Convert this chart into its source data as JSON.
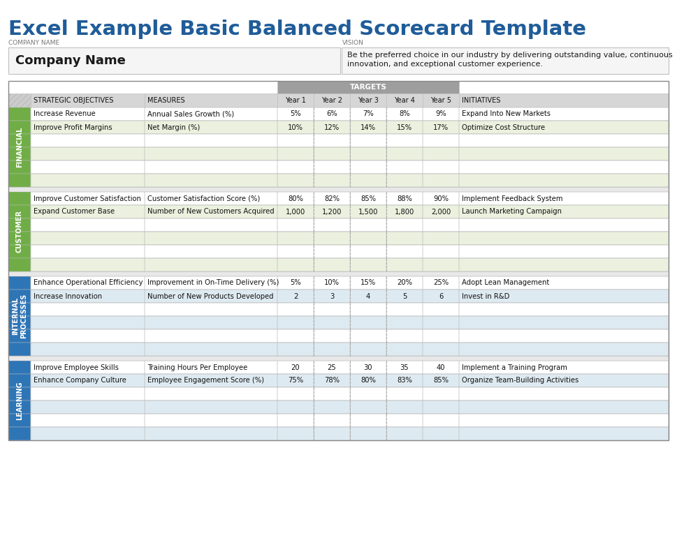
{
  "title": "Excel Example Basic Balanced Scorecard Template",
  "title_color": "#1F5C99",
  "company_label": "COMPANY NAME",
  "vision_label": "VISION",
  "company_name": "Company Name",
  "vision_text": "Be the preferred choice in our industry by delivering outstanding value, continuous\ninnovation, and exceptional customer experience.",
  "targets_label": "TARGETS",
  "col_headers": [
    "STRATEGIC OBJECTIVES",
    "MEASURES",
    "Year 1",
    "Year 2",
    "Year 3",
    "Year 4",
    "Year 5",
    "INITIATIVES"
  ],
  "perspectives": [
    {
      "name": "FINANCIAL",
      "side_color": "#70AD47",
      "odd_color": "#FFFFFF",
      "even_color": "#EBF1DE",
      "rows": [
        [
          "Increase Revenue",
          "Annual Sales Growth (%)",
          "5%",
          "6%",
          "7%",
          "8%",
          "9%",
          "Expand Into New Markets"
        ],
        [
          "Improve Profit Margins",
          "Net Margin (%)",
          "10%",
          "12%",
          "14%",
          "15%",
          "17%",
          "Optimize Cost Structure"
        ],
        [
          "",
          "",
          "",
          "",
          "",
          "",
          "",
          ""
        ],
        [
          "",
          "",
          "",
          "",
          "",
          "",
          "",
          ""
        ],
        [
          "",
          "",
          "",
          "",
          "",
          "",
          "",
          ""
        ],
        [
          "",
          "",
          "",
          "",
          "",
          "",
          "",
          ""
        ]
      ]
    },
    {
      "name": "CUSTOMER",
      "side_color": "#70AD47",
      "odd_color": "#FFFFFF",
      "even_color": "#EBF1DE",
      "rows": [
        [
          "Improve Customer Satisfaction",
          "Customer Satisfaction Score (%)",
          "80%",
          "82%",
          "85%",
          "88%",
          "90%",
          "Implement Feedback System"
        ],
        [
          "Expand Customer Base",
          "Number of New Customers Acquired",
          "1,000",
          "1,200",
          "1,500",
          "1,800",
          "2,000",
          "Launch Marketing Campaign"
        ],
        [
          "",
          "",
          "",
          "",
          "",
          "",
          "",
          ""
        ],
        [
          "",
          "",
          "",
          "",
          "",
          "",
          "",
          ""
        ],
        [
          "",
          "",
          "",
          "",
          "",
          "",
          "",
          ""
        ],
        [
          "",
          "",
          "",
          "",
          "",
          "",
          "",
          ""
        ]
      ]
    },
    {
      "name": "INTERNAL\nPROCESSES",
      "side_color": "#2E75B6",
      "odd_color": "#FFFFFF",
      "even_color": "#DEEAF1",
      "rows": [
        [
          "Enhance Operational Efficiency",
          "Improvement in On-Time Delivery (%)",
          "5%",
          "10%",
          "15%",
          "20%",
          "25%",
          "Adopt Lean Management"
        ],
        [
          "Increase Innovation",
          "Number of New Products Developed",
          "2",
          "3",
          "4",
          "5",
          "6",
          "Invest in R&D"
        ],
        [
          "",
          "",
          "",
          "",
          "",
          "",
          "",
          ""
        ],
        [
          "",
          "",
          "",
          "",
          "",
          "",
          "",
          ""
        ],
        [
          "",
          "",
          "",
          "",
          "",
          "",
          "",
          ""
        ],
        [
          "",
          "",
          "",
          "",
          "",
          "",
          "",
          ""
        ]
      ]
    },
    {
      "name": "LEARNING",
      "side_color": "#2E75B6",
      "odd_color": "#FFFFFF",
      "even_color": "#DEEAF1",
      "rows": [
        [
          "Improve Employee Skills",
          "Training Hours Per Employee",
          "20",
          "25",
          "30",
          "35",
          "40",
          "Implement a Training Program"
        ],
        [
          "Enhance Company Culture",
          "Employee Engagement Score (%)",
          "75%",
          "78%",
          "80%",
          "83%",
          "85%",
          "Organize Team-Building Activities"
        ],
        [
          "",
          "",
          "",
          "",
          "",
          "",
          "",
          ""
        ],
        [
          "",
          "",
          "",
          "",
          "",
          "",
          "",
          ""
        ],
        [
          "",
          "",
          "",
          "",
          "",
          "",
          "",
          ""
        ],
        [
          "",
          "",
          "",
          "",
          "",
          "",
          "",
          ""
        ]
      ]
    }
  ],
  "border_color": "#BFBFBF",
  "header_gray": "#BEBEBE",
  "subheader_gray": "#D6D6D6",
  "targets_gray": "#9E9E9E",
  "gap_color": "#E8E8E8"
}
